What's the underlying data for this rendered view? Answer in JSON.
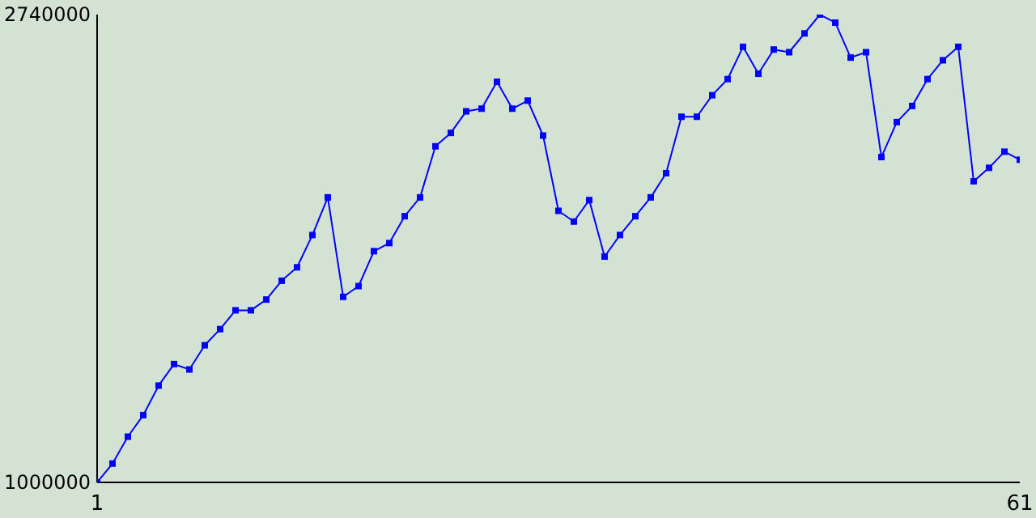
{
  "chart_data": {
    "type": "line",
    "x": [
      1,
      2,
      3,
      4,
      5,
      6,
      7,
      8,
      9,
      10,
      11,
      12,
      13,
      14,
      15,
      16,
      17,
      18,
      19,
      20,
      21,
      22,
      23,
      24,
      25,
      26,
      27,
      28,
      29,
      30,
      31,
      32,
      33,
      34,
      35,
      36,
      37,
      38,
      39,
      40,
      41,
      42,
      43,
      44,
      45,
      46,
      47,
      48,
      49,
      50,
      51,
      52,
      53,
      54,
      55,
      56,
      57,
      58,
      59,
      60,
      61
    ],
    "series": [
      {
        "color": "#0000ff",
        "values": [
          1000000,
          1070000,
          1170000,
          1250000,
          1360000,
          1440000,
          1420000,
          1510000,
          1570000,
          1640000,
          1640000,
          1680000,
          1750000,
          1800000,
          1920000,
          2060000,
          1690000,
          1730000,
          1860000,
          1890000,
          1990000,
          2060000,
          2250000,
          2300000,
          2380000,
          2390000,
          2490000,
          2390000,
          2420000,
          2290000,
          2010000,
          1970000,
          2050000,
          1840000,
          1920000,
          1990000,
          2060000,
          2150000,
          2360000,
          2360000,
          2440000,
          2500000,
          2620000,
          2520000,
          2610000,
          2600000,
          2670000,
          2740000,
          2710000,
          2580000,
          2600000,
          2210000,
          2340000,
          2400000,
          2500000,
          2570000,
          2620000,
          2120000,
          2170000,
          2230000,
          2200000
        ]
      }
    ],
    "xlim": [
      1,
      61
    ],
    "xticks": [
      1,
      61
    ],
    "ylim": [
      1000000,
      2740000
    ],
    "yticks": [
      1000000,
      2740000
    ],
    "marker": "square",
    "line_style": "solid"
  }
}
